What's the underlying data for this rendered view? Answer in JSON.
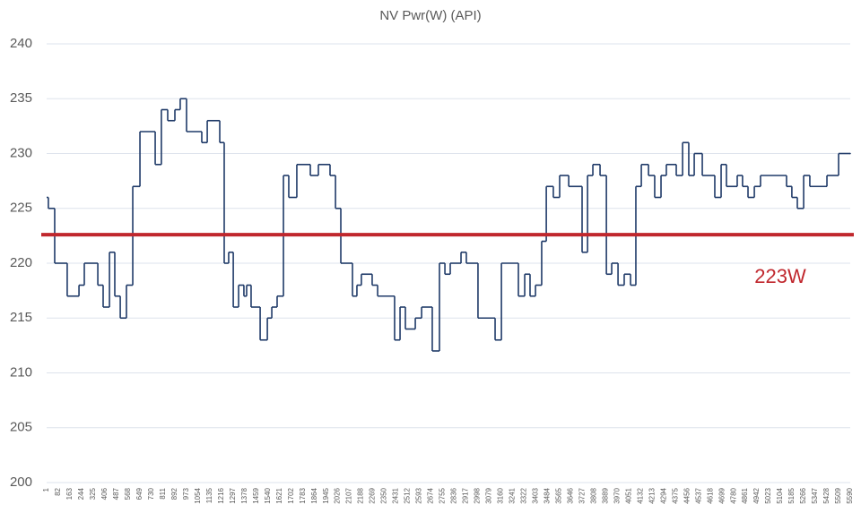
{
  "chart_data": {
    "type": "line",
    "step": "post",
    "title": "NV Pwr(W) (API)",
    "xlim": [
      1,
      5590
    ],
    "xticks": [
      1,
      82,
      163,
      244,
      325,
      406,
      487,
      568,
      649,
      730,
      811,
      892,
      973,
      1054,
      1135,
      1216,
      1297,
      1378,
      1459,
      1540,
      1621,
      1702,
      1783,
      1864,
      1945,
      2026,
      2107,
      2188,
      2269,
      2350,
      2431,
      2512,
      2593,
      2674,
      2755,
      2836,
      2917,
      2998,
      3079,
      3160,
      3241,
      3322,
      3403,
      3484,
      3565,
      3646,
      3727,
      3808,
      3889,
      3970,
      4051,
      4132,
      4213,
      4294,
      4375,
      4456,
      4537,
      4618,
      4699,
      4780,
      4861,
      4942,
      5023,
      5104,
      5185,
      5266,
      5347,
      5428,
      5509,
      5590
    ],
    "ylim": [
      200,
      240
    ],
    "yticks": [
      200,
      205,
      210,
      215,
      220,
      225,
      230,
      235,
      240
    ],
    "grid": true,
    "x": [
      1,
      13,
      57,
      144,
      226,
      263,
      357,
      394,
      438,
      475,
      513,
      556,
      600,
      650,
      756,
      799,
      843,
      893,
      930,
      974,
      1080,
      1118,
      1205,
      1236,
      1267,
      1299,
      1336,
      1373,
      1392,
      1423,
      1486,
      1536,
      1567,
      1604,
      1648,
      1685,
      1741,
      1835,
      1891,
      1972,
      2010,
      2047,
      2128,
      2159,
      2190,
      2265,
      2303,
      2421,
      2459,
      2496,
      2565,
      2609,
      2683,
      2733,
      2771,
      2808,
      2883,
      2920,
      3001,
      3120,
      3164,
      3282,
      3326,
      3363,
      3401,
      3444,
      3476,
      3525,
      3569,
      3632,
      3725,
      3763,
      3800,
      3850,
      3894,
      3931,
      3975,
      4018,
      4062,
      4099,
      4137,
      4187,
      4230,
      4274,
      4311,
      4380,
      4424,
      4467,
      4505,
      4561,
      4648,
      4692,
      4729,
      4804,
      4841,
      4879,
      4923,
      4966,
      5147,
      5184,
      5222,
      5266,
      5309,
      5428,
      5509,
      5590
    ],
    "series": [
      {
        "color": "#1f3a68",
        "values": [
          226,
          225,
          220,
          217,
          218,
          220,
          218,
          216,
          221,
          217,
          215,
          218,
          227,
          232,
          229,
          234,
          233,
          234,
          235,
          232,
          231,
          233,
          231,
          220,
          221,
          216,
          218,
          217,
          218,
          216,
          213,
          215,
          216,
          217,
          228,
          226,
          229,
          228,
          229,
          228,
          225,
          220,
          217,
          218,
          219,
          218,
          217,
          213,
          216,
          214,
          215,
          216,
          212,
          220,
          219,
          220,
          221,
          220,
          215,
          213,
          220,
          217,
          219,
          217,
          218,
          222,
          227,
          226,
          228,
          227,
          221,
          228,
          229,
          228,
          219,
          220,
          218,
          219,
          218,
          227,
          229,
          228,
          226,
          228,
          229,
          228,
          231,
          228,
          230,
          228,
          226,
          229,
          227,
          228,
          227,
          226,
          227,
          228,
          227,
          226,
          225,
          228,
          227,
          228,
          230,
          230
        ]
      }
    ],
    "reference": {
      "value": 222.6,
      "label": "223W",
      "color": "#c0272d"
    }
  }
}
